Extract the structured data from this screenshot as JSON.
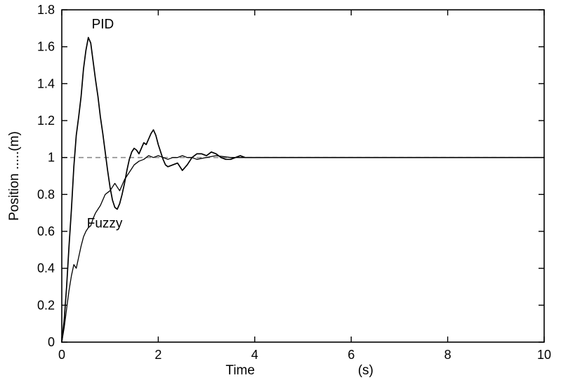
{
  "figure": {
    "background": "#ffffff",
    "line_color": "#000000",
    "reference_color": "#8c8c8c"
  },
  "chart_data": {
    "type": "line",
    "title": "",
    "xlabel": "Time",
    "xlabel_unit": "(s)",
    "ylabel": "Position .....(m)",
    "xlim": [
      0,
      10
    ],
    "ylim": [
      0,
      1.8
    ],
    "xticks": [
      0,
      2,
      4,
      6,
      8,
      10
    ],
    "xtick_labels": [
      "0",
      "2",
      "4",
      "6",
      "8",
      "10"
    ],
    "yticks": [
      0,
      0.2,
      0.4,
      0.6,
      0.8,
      1.0,
      1.2,
      1.4,
      1.6,
      1.8
    ],
    "ytick_labels": [
      "0",
      "0.2",
      "0.4",
      "0.6",
      "0.8",
      "1",
      "1.2",
      "1.4",
      "1.6",
      "1.8"
    ],
    "grid": false,
    "legend_position": "none",
    "annotations": [
      {
        "text": "PID",
        "x": 0.62,
        "y": 1.7
      },
      {
        "text": "Fuzzy",
        "x": 0.52,
        "y": 0.62
      }
    ],
    "reference": {
      "y": 1.0,
      "style": "dashed",
      "x_start": 0,
      "x_end": 10
    },
    "series": [
      {
        "name": "PID",
        "style": "solid",
        "width": 1.7,
        "points": [
          [
            0,
            0
          ],
          [
            0.05,
            0.12
          ],
          [
            0.1,
            0.3
          ],
          [
            0.15,
            0.52
          ],
          [
            0.2,
            0.72
          ],
          [
            0.25,
            0.95
          ],
          [
            0.3,
            1.12
          ],
          [
            0.35,
            1.22
          ],
          [
            0.4,
            1.33
          ],
          [
            0.45,
            1.48
          ],
          [
            0.5,
            1.58
          ],
          [
            0.55,
            1.65
          ],
          [
            0.6,
            1.62
          ],
          [
            0.65,
            1.52
          ],
          [
            0.7,
            1.42
          ],
          [
            0.75,
            1.33
          ],
          [
            0.8,
            1.22
          ],
          [
            0.85,
            1.13
          ],
          [
            0.9,
            1.03
          ],
          [
            0.95,
            0.93
          ],
          [
            1.0,
            0.84
          ],
          [
            1.05,
            0.77
          ],
          [
            1.1,
            0.73
          ],
          [
            1.15,
            0.72
          ],
          [
            1.2,
            0.75
          ],
          [
            1.25,
            0.8
          ],
          [
            1.3,
            0.86
          ],
          [
            1.35,
            0.93
          ],
          [
            1.4,
            0.99
          ],
          [
            1.45,
            1.03
          ],
          [
            1.5,
            1.05
          ],
          [
            1.55,
            1.04
          ],
          [
            1.6,
            1.02
          ],
          [
            1.65,
            1.05
          ],
          [
            1.7,
            1.08
          ],
          [
            1.75,
            1.07
          ],
          [
            1.8,
            1.1
          ],
          [
            1.85,
            1.13
          ],
          [
            1.9,
            1.15
          ],
          [
            1.95,
            1.12
          ],
          [
            2.0,
            1.07
          ],
          [
            2.05,
            1.03
          ],
          [
            2.1,
            0.99
          ],
          [
            2.15,
            0.96
          ],
          [
            2.2,
            0.95
          ],
          [
            2.3,
            0.96
          ],
          [
            2.4,
            0.97
          ],
          [
            2.45,
            0.95
          ],
          [
            2.5,
            0.93
          ],
          [
            2.6,
            0.96
          ],
          [
            2.7,
            1.0
          ],
          [
            2.8,
            1.02
          ],
          [
            2.9,
            1.02
          ],
          [
            3.0,
            1.01
          ],
          [
            3.1,
            1.03
          ],
          [
            3.2,
            1.02
          ],
          [
            3.3,
            1.0
          ],
          [
            3.4,
            0.99
          ],
          [
            3.5,
            0.99
          ],
          [
            3.6,
            1.0
          ],
          [
            3.7,
            1.01
          ],
          [
            3.8,
            1.0
          ],
          [
            4.0,
            1.0
          ],
          [
            4.5,
            1.0
          ],
          [
            5.0,
            1.0
          ],
          [
            6.0,
            1.0
          ],
          [
            7.0,
            1.0
          ],
          [
            8.0,
            1.0
          ],
          [
            9.0,
            1.0
          ],
          [
            10.0,
            1.0
          ]
        ]
      },
      {
        "name": "Fuzzy",
        "style": "solid",
        "width": 1.3,
        "points": [
          [
            0,
            0
          ],
          [
            0.05,
            0.08
          ],
          [
            0.1,
            0.18
          ],
          [
            0.15,
            0.28
          ],
          [
            0.2,
            0.36
          ],
          [
            0.25,
            0.42
          ],
          [
            0.3,
            0.4
          ],
          [
            0.35,
            0.46
          ],
          [
            0.4,
            0.52
          ],
          [
            0.45,
            0.57
          ],
          [
            0.5,
            0.6
          ],
          [
            0.55,
            0.62
          ],
          [
            0.6,
            0.63
          ],
          [
            0.65,
            0.67
          ],
          [
            0.7,
            0.7
          ],
          [
            0.75,
            0.72
          ],
          [
            0.8,
            0.74
          ],
          [
            0.85,
            0.77
          ],
          [
            0.9,
            0.8
          ],
          [
            0.95,
            0.81
          ],
          [
            1.0,
            0.82
          ],
          [
            1.05,
            0.84
          ],
          [
            1.1,
            0.86
          ],
          [
            1.15,
            0.84
          ],
          [
            1.2,
            0.82
          ],
          [
            1.25,
            0.85
          ],
          [
            1.3,
            0.88
          ],
          [
            1.35,
            0.9
          ],
          [
            1.4,
            0.92
          ],
          [
            1.45,
            0.94
          ],
          [
            1.5,
            0.96
          ],
          [
            1.6,
            0.98
          ],
          [
            1.7,
            0.99
          ],
          [
            1.8,
            1.01
          ],
          [
            1.9,
            1.0
          ],
          [
            2.0,
            1.01
          ],
          [
            2.1,
            1.0
          ],
          [
            2.2,
            0.99
          ],
          [
            2.3,
            1.0
          ],
          [
            2.4,
            1.0
          ],
          [
            2.5,
            1.01
          ],
          [
            2.6,
            1.0
          ],
          [
            2.7,
            1.0
          ],
          [
            2.8,
            0.99
          ],
          [
            3.0,
            1.0
          ],
          [
            3.2,
            1.01
          ],
          [
            3.5,
            1.0
          ],
          [
            4.0,
            1.0
          ],
          [
            5.0,
            1.0
          ],
          [
            6.0,
            1.0
          ],
          [
            7.0,
            1.0
          ],
          [
            8.0,
            1.0
          ],
          [
            9.0,
            1.0
          ],
          [
            10.0,
            1.0
          ]
        ]
      }
    ]
  }
}
